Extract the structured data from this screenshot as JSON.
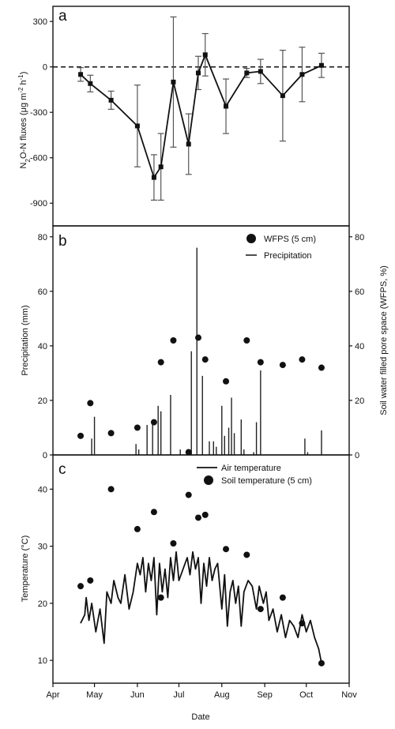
{
  "chart_data": [
    {
      "panel": "a",
      "type": "line",
      "ylabel": "N2O-N fluxes (μg m⁻² h⁻¹)",
      "ylabel_parts": [
        "N",
        "2",
        "O-N fluxes (μg m",
        "-2",
        " h",
        "-1",
        ")"
      ],
      "ylim": [
        -1050,
        400
      ],
      "yticks": [
        300,
        0,
        -300,
        -600,
        -900
      ],
      "zero_line": "dashed",
      "series": [
        {
          "name": "",
          "x": [
            "2015-04-21",
            "2015-04-28",
            "2015-05-13",
            "2015-06-01",
            "2015-06-13",
            "2015-06-18",
            "2015-06-27",
            "2015-07-08",
            "2015-07-15",
            "2015-07-20",
            "2015-08-04",
            "2015-08-19",
            "2015-08-29",
            "2015-09-14",
            "2015-09-28",
            "2015-10-12"
          ],
          "y": [
            -50,
            -110,
            -220,
            -390,
            -730,
            -660,
            -100,
            -510,
            -40,
            80,
            -260,
            -40,
            -30,
            -190,
            -50,
            10
          ],
          "err": [
            45,
            55,
            60,
            270,
            150,
            220,
            430,
            200,
            110,
            140,
            180,
            30,
            80,
            300,
            180,
            80
          ]
        }
      ]
    },
    {
      "panel": "b",
      "type": "bar",
      "ylabel": "Precipitation (mm)",
      "ylabel_right": "Soil water filled pore space (WFPS, %)",
      "ylim": [
        0,
        84
      ],
      "yticks": [
        0,
        20,
        40,
        60,
        80
      ],
      "legend": [
        "WFPS (5 cm)",
        "Precipitation"
      ],
      "legend_position": "top-right",
      "precipitation": {
        "x": [
          "2015-04-29",
          "2015-05-01",
          "2015-05-31",
          "2015-06-02",
          "2015-06-08",
          "2015-06-12",
          "2015-06-16",
          "2015-06-18",
          "2015-06-25",
          "2015-07-02",
          "2015-07-10",
          "2015-07-14",
          "2015-07-18",
          "2015-07-23",
          "2015-07-26",
          "2015-07-28",
          "2015-08-01",
          "2015-08-03",
          "2015-08-06",
          "2015-08-08",
          "2015-08-10",
          "2015-08-15",
          "2015-08-17",
          "2015-08-24",
          "2015-08-26",
          "2015-08-29",
          "2015-09-30",
          "2015-10-02",
          "2015-10-12"
        ],
        "values": [
          6,
          14,
          4,
          2,
          11,
          13,
          18,
          16,
          22,
          2,
          38,
          76,
          29,
          5,
          5,
          3,
          18,
          7,
          10,
          21,
          8,
          13,
          2,
          1,
          12,
          31,
          6,
          1,
          9
        ]
      },
      "wfps": {
        "x": [
          "2015-04-21",
          "2015-04-28",
          "2015-05-13",
          "2015-06-01",
          "2015-06-13",
          "2015-06-18",
          "2015-06-27",
          "2015-07-08",
          "2015-07-15",
          "2015-07-20",
          "2015-08-04",
          "2015-08-19",
          "2015-08-29",
          "2015-09-14",
          "2015-09-28",
          "2015-10-12"
        ],
        "values": [
          7,
          19,
          8,
          10,
          12,
          34,
          42,
          1,
          43,
          35,
          27,
          42,
          34,
          33,
          35,
          32
        ]
      }
    },
    {
      "panel": "c",
      "type": "line",
      "xlabel": "Date",
      "ylabel": "Temperature (°C)",
      "ylim": [
        6,
        46
      ],
      "yticks": [
        10,
        20,
        30,
        40
      ],
      "legend": [
        "Air temperature",
        "Soil temperature (5 cm)"
      ],
      "legend_position": "top-center",
      "x_ticks": [
        "Apr",
        "May",
        "Jun",
        "Jul",
        "Aug",
        "Sep",
        "Oct",
        "Nov"
      ],
      "x_tick_dates": [
        "2015-04-01",
        "2015-05-01",
        "2015-06-01",
        "2015-07-01",
        "2015-08-01",
        "2015-09-01",
        "2015-10-01",
        "2015-11-01"
      ],
      "air_temperature": {
        "x": [
          "2015-04-21",
          "2015-04-24",
          "2015-04-25",
          "2015-04-27",
          "2015-04-29",
          "2015-05-02",
          "2015-05-05",
          "2015-05-08",
          "2015-05-10",
          "2015-05-13",
          "2015-05-15",
          "2015-05-18",
          "2015-05-20",
          "2015-05-23",
          "2015-05-26",
          "2015-05-29",
          "2015-06-01",
          "2015-06-03",
          "2015-06-05",
          "2015-06-07",
          "2015-06-09",
          "2015-06-11",
          "2015-06-13",
          "2015-06-15",
          "2015-06-17",
          "2015-06-19",
          "2015-06-21",
          "2015-06-23",
          "2015-06-25",
          "2015-06-27",
          "2015-06-29",
          "2015-07-01",
          "2015-07-04",
          "2015-07-07",
          "2015-07-09",
          "2015-07-11",
          "2015-07-13",
          "2015-07-15",
          "2015-07-17",
          "2015-07-19",
          "2015-07-21",
          "2015-07-23",
          "2015-07-25",
          "2015-07-27",
          "2015-07-29",
          "2015-08-01",
          "2015-08-03",
          "2015-08-05",
          "2015-08-07",
          "2015-08-09",
          "2015-08-11",
          "2015-08-13",
          "2015-08-15",
          "2015-08-17",
          "2015-08-20",
          "2015-08-23",
          "2015-08-26",
          "2015-08-28",
          "2015-08-31",
          "2015-09-02",
          "2015-09-04",
          "2015-09-07",
          "2015-09-10",
          "2015-09-13",
          "2015-09-16",
          "2015-09-19",
          "2015-09-22",
          "2015-09-25",
          "2015-09-28",
          "2015-10-01",
          "2015-10-04",
          "2015-10-07",
          "2015-10-10",
          "2015-10-12"
        ],
        "values": [
          16.5,
          18,
          21,
          17,
          20,
          15,
          19,
          13,
          22,
          20,
          24,
          21,
          20,
          25,
          19,
          22,
          27,
          25,
          28,
          22,
          27,
          24,
          28,
          18,
          27,
          22,
          26,
          21,
          28,
          24,
          29,
          24,
          26,
          28,
          25,
          29,
          26,
          28,
          20,
          27,
          23,
          28,
          24,
          26,
          27,
          19,
          25,
          16,
          22,
          24,
          20,
          23,
          16,
          22,
          24,
          23,
          19,
          23,
          20,
          22,
          17,
          19,
          15,
          18,
          14,
          17,
          16,
          14,
          18,
          15,
          17,
          14,
          12,
          9.5
        ]
      },
      "soil_temperature": {
        "x": [
          "2015-04-21",
          "2015-04-28",
          "2015-05-13",
          "2015-06-01",
          "2015-06-13",
          "2015-06-18",
          "2015-06-27",
          "2015-07-08",
          "2015-07-15",
          "2015-07-20",
          "2015-08-04",
          "2015-08-19",
          "2015-08-29",
          "2015-09-14",
          "2015-09-28",
          "2015-10-12"
        ],
        "values": [
          23,
          24,
          40,
          33,
          36,
          21,
          30.5,
          39,
          35,
          35.5,
          29.5,
          28.5,
          19,
          21,
          16.5,
          9.5
        ]
      }
    }
  ]
}
